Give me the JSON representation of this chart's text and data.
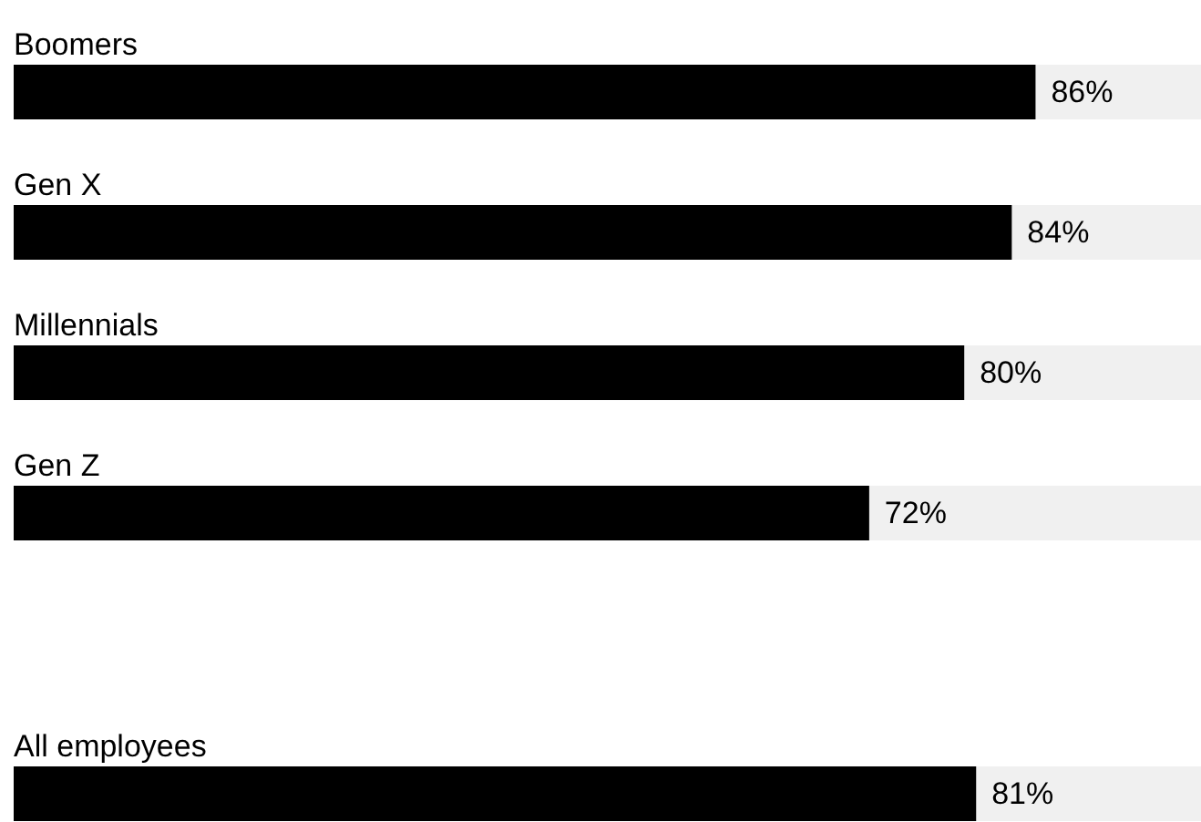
{
  "chart_data": {
    "type": "bar",
    "orientation": "horizontal",
    "stacked": true,
    "categories": [
      "Boomers",
      "Gen X",
      "Millennials",
      "Gen Z",
      null,
      "All employees"
    ],
    "xlim": [
      0,
      100
    ],
    "tick_labels": false,
    "grid": false,
    "series": [
      {
        "color": "#000000",
        "values": [
          86,
          84,
          80,
          72,
          null,
          81
        ],
        "value_labels": [
          "86%",
          "84%",
          "80%",
          "72%",
          null,
          "81%"
        ]
      },
      {
        "color": "#f0f0f0",
        "values": [
          14,
          16,
          20,
          28,
          null,
          19
        ]
      }
    ]
  }
}
